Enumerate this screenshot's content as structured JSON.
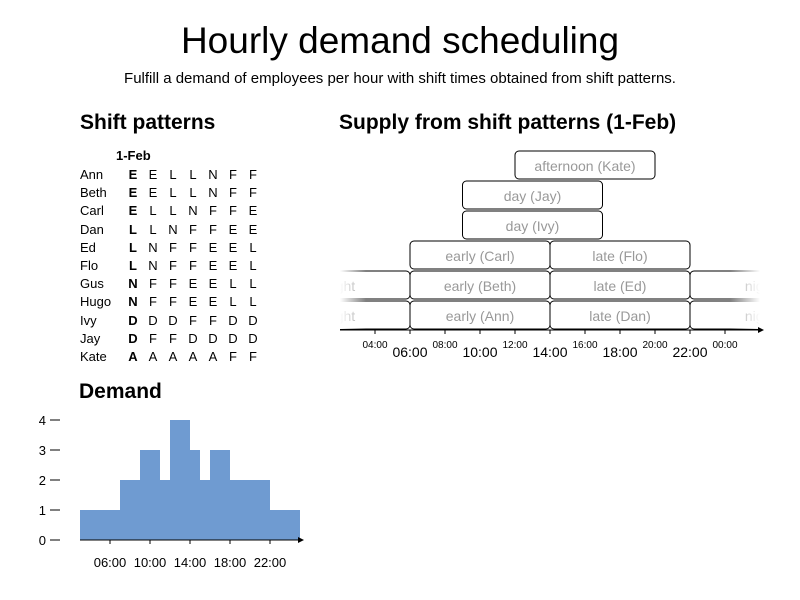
{
  "title": "Hourly demand scheduling",
  "subtitle": "Fulfill a demand of employees per hour with shift times obtained from shift patterns.",
  "patterns": {
    "section_title": "Shift patterns",
    "date": "1-Feb",
    "rows": [
      {
        "name": "Ann",
        "codes": [
          "E",
          "E",
          "L",
          "L",
          "N",
          "F",
          "F"
        ]
      },
      {
        "name": "Beth",
        "codes": [
          "E",
          "E",
          "L",
          "L",
          "N",
          "F",
          "F"
        ]
      },
      {
        "name": "Carl",
        "codes": [
          "E",
          "L",
          "L",
          "N",
          "F",
          "F",
          "E"
        ]
      },
      {
        "name": "Dan",
        "codes": [
          "L",
          "L",
          "N",
          "F",
          "F",
          "E",
          "E"
        ]
      },
      {
        "name": "Ed",
        "codes": [
          "L",
          "N",
          "F",
          "F",
          "E",
          "E",
          "L"
        ]
      },
      {
        "name": "Flo",
        "codes": [
          "L",
          "N",
          "F",
          "F",
          "E",
          "E",
          "L"
        ]
      },
      {
        "name": "Gus",
        "codes": [
          "N",
          "F",
          "F",
          "E",
          "E",
          "L",
          "L"
        ]
      },
      {
        "name": "Hugo",
        "codes": [
          "N",
          "F",
          "F",
          "E",
          "E",
          "L",
          "L"
        ]
      },
      {
        "name": "Ivy",
        "codes": [
          "D",
          "D",
          "D",
          "F",
          "F",
          "D",
          "D"
        ]
      },
      {
        "name": "Jay",
        "codes": [
          "D",
          "F",
          "F",
          "D",
          "D",
          "D",
          "D"
        ]
      },
      {
        "name": "Kate",
        "codes": [
          "A",
          "A",
          "A",
          "A",
          "A",
          "F",
          "F"
        ]
      }
    ]
  },
  "supply": {
    "section_title": "Supply from shift patterns (1-Feb)",
    "x_range": [
      2,
      26
    ],
    "major_ticks": [
      {
        "h": 6,
        "label": "06:00"
      },
      {
        "h": 10,
        "label": "10:00"
      },
      {
        "h": 14,
        "label": "14:00"
      },
      {
        "h": 18,
        "label": "18:00"
      },
      {
        "h": 22,
        "label": "22:00"
      }
    ],
    "minor_ticks": [
      {
        "h": 4,
        "label": "04:00"
      },
      {
        "h": 8,
        "label": "08:00"
      },
      {
        "h": 12,
        "label": "12:00"
      },
      {
        "h": 16,
        "label": "16:00"
      },
      {
        "h": 20,
        "label": "20:00"
      },
      {
        "h": 24,
        "label": "00:00"
      }
    ],
    "shifts": [
      {
        "label": "night",
        "start": 22,
        "end": 30,
        "level": 0
      },
      {
        "label": "early (Ann)",
        "start": 6,
        "end": 14,
        "level": 0
      },
      {
        "label": "late (Dan)",
        "start": 14,
        "end": 22,
        "level": 0
      },
      {
        "label": "night",
        "start": -2,
        "end": 6,
        "level": 0
      },
      {
        "label": "night",
        "start": 22,
        "end": 30,
        "level": 1
      },
      {
        "label": "early (Beth)",
        "start": 6,
        "end": 14,
        "level": 1
      },
      {
        "label": "late (Ed)",
        "start": 14,
        "end": 22,
        "level": 1
      },
      {
        "label": "night",
        "start": -2,
        "end": 6,
        "level": 1
      },
      {
        "label": "early (Carl)",
        "start": 6,
        "end": 14,
        "level": 2
      },
      {
        "label": "late (Flo)",
        "start": 14,
        "end": 22,
        "level": 2
      },
      {
        "label": "day (Ivy)",
        "start": 9,
        "end": 17,
        "level": 3
      },
      {
        "label": "day (Jay)",
        "start": 9,
        "end": 17,
        "level": 4
      },
      {
        "label": "afternoon (Kate)",
        "start": 12,
        "end": 20,
        "level": 5
      }
    ]
  },
  "chart_data": {
    "type": "area",
    "title": "Demand",
    "xlabel": "",
    "ylabel": "",
    "x_tick_labels": [
      "06:00",
      "10:00",
      "14:00",
      "18:00",
      "22:00"
    ],
    "x_ticks": [
      6,
      10,
      14,
      18,
      22
    ],
    "y_ticks": [
      0,
      1,
      2,
      3,
      4
    ],
    "x_range": [
      3,
      25
    ],
    "ylim": [
      0,
      4
    ],
    "step": "post",
    "x": [
      3,
      4,
      5,
      6,
      7,
      8,
      9,
      10,
      11,
      12,
      13,
      14,
      15,
      16,
      17,
      18,
      19,
      20,
      21,
      22,
      23,
      24
    ],
    "values": [
      1,
      1,
      1,
      1,
      2,
      2,
      3,
      3,
      2,
      4,
      4,
      3,
      2,
      3,
      3,
      2,
      2,
      2,
      2,
      1,
      1,
      1
    ],
    "color": "#6f9bd1"
  },
  "colors": {
    "shift_text": "#999999",
    "shift_border": "#000000",
    "demand_fill": "#6f9bd1"
  }
}
